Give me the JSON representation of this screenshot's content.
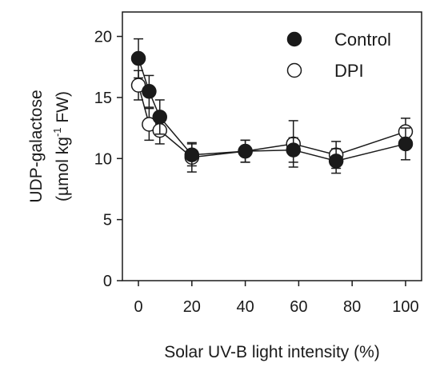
{
  "chart_data": {
    "type": "line",
    "xlabel": "Solar UV-B light intensity (%)",
    "ylabel_line1": "UDP-galactose",
    "ylabel_line2_prefix": "(µmol kg",
    "ylabel_line2_sup": "-1",
    "ylabel_line2_suffix": " FW)",
    "xlim": [
      -6,
      106
    ],
    "ylim": [
      0,
      22
    ],
    "xticks": [
      0,
      20,
      40,
      60,
      80,
      100
    ],
    "yticks": [
      0,
      5,
      10,
      15,
      20
    ],
    "legend_position": "top-right",
    "grid": false,
    "series": [
      {
        "name": "Control",
        "marker": "filled-circle",
        "color": "#1a1a1a",
        "x": [
          0,
          4,
          8,
          20,
          40,
          58,
          74,
          100
        ],
        "y": [
          18.2,
          15.5,
          13.4,
          10.3,
          10.6,
          10.7,
          9.8,
          11.2
        ],
        "err": [
          1.6,
          1.3,
          1.4,
          0.9,
          0.9,
          1.0,
          1.0,
          1.3
        ]
      },
      {
        "name": "DPI",
        "marker": "open-circle",
        "color": "#1a1a1a",
        "x": [
          0,
          4,
          8,
          20,
          40,
          58,
          74,
          100
        ],
        "y": [
          16.0,
          12.8,
          12.3,
          10.1,
          10.6,
          11.2,
          10.3,
          12.2
        ],
        "err": [
          1.2,
          1.3,
          1.1,
          1.2,
          0.9,
          1.9,
          1.1,
          1.1
        ]
      }
    ]
  }
}
